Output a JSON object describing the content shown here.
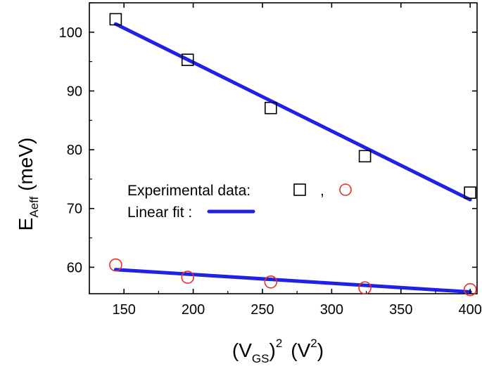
{
  "chart_data": {
    "type": "scatter",
    "xlabel": {
      "base": "(V",
      "sub": "GS",
      "close": ")",
      "sup": "2",
      "unit_open": "(V",
      "unit_sup": "2",
      "unit_close": ")"
    },
    "ylabel": {
      "base": "E",
      "sub": "Aeff",
      "rest": " (meV)"
    },
    "xlim": [
      125,
      405
    ],
    "ylim": [
      55.5,
      105
    ],
    "xticks": [
      150,
      200,
      250,
      300,
      350,
      400
    ],
    "yticks": [
      60,
      70,
      80,
      90,
      100
    ],
    "grid": false,
    "legend": {
      "placement": "center-right",
      "experimental_label": "Experimental data:",
      "separator": ",",
      "fit_label": "Linear fit :"
    },
    "series": [
      {
        "kind": "square",
        "color": "#000000",
        "points": [
          {
            "x": 144,
            "y": 102.2
          },
          {
            "x": 196,
            "y": 95.3
          },
          {
            "x": 256,
            "y": 87.1
          },
          {
            "x": 324,
            "y": 78.9
          },
          {
            "x": 400,
            "y": 72.7
          }
        ]
      },
      {
        "kind": "circle",
        "color": "#e8302a",
        "points": [
          {
            "x": 144,
            "y": 60.4
          },
          {
            "x": 196,
            "y": 58.3
          },
          {
            "x": 256,
            "y": 57.5
          },
          {
            "x": 324,
            "y": 56.5
          },
          {
            "x": 400,
            "y": 56.2
          }
        ]
      }
    ],
    "fits": [
      {
        "color": "#1f22e6",
        "x": [
          144,
          400
        ],
        "y": [
          101.4,
          71.5
        ]
      },
      {
        "color": "#1f22e6",
        "x": [
          144,
          400
        ],
        "y": [
          59.6,
          55.8
        ]
      }
    ]
  }
}
